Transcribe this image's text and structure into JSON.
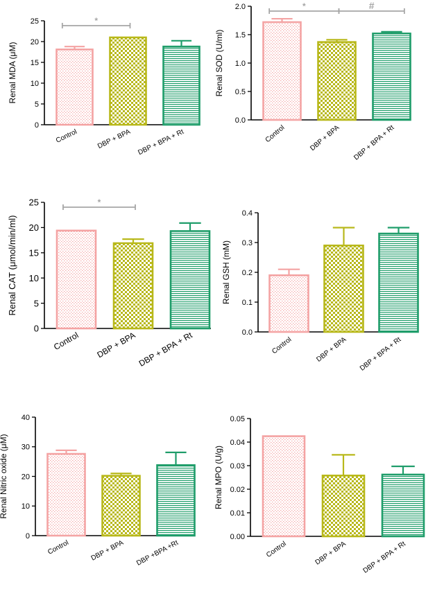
{
  "figure": {
    "category_colors": [
      "#f4a3a3",
      "#b8b81a",
      "#1f9d6a"
    ],
    "sig_color": "#a6a6a6"
  },
  "chart_data": [
    {
      "type": "bar",
      "ylabel": "Renal MDA (μM)",
      "categories": [
        "Control",
        "DBP + BPA",
        "DBP + BPA + Rt"
      ],
      "values": [
        18.1,
        21.0,
        18.8
      ],
      "errors": [
        0.7,
        0.0,
        1.4
      ],
      "ylim": [
        0,
        25
      ],
      "ticks": [
        "0",
        "5",
        "10",
        "15",
        "20",
        "25"
      ],
      "annotations": [
        {
          "text": "*",
          "from": 0,
          "to": 1
        }
      ]
    },
    {
      "type": "bar",
      "ylabel": "Renal SOD (U/ml)",
      "categories": [
        "Control",
        "DBP + BPA",
        "DBP + BPA + Rt"
      ],
      "values": [
        1.72,
        1.37,
        1.52
      ],
      "errors": [
        0.06,
        0.04,
        0.03
      ],
      "ylim": [
        0,
        2.0
      ],
      "ticks": [
        "0.0",
        "0.5",
        "1.0",
        "1.5",
        "2.0"
      ],
      "annotations": [
        {
          "text": "*",
          "from": 0,
          "to": 1
        },
        {
          "text": "#",
          "from": 1,
          "to": 2
        }
      ]
    },
    {
      "type": "bar",
      "ylabel": "Renal CAT (μmol/min/ml)",
      "categories": [
        "Control",
        "DBP + BPA",
        "DBP + BPA + Rt"
      ],
      "values": [
        19.4,
        16.9,
        19.3
      ],
      "errors": [
        0.0,
        0.8,
        1.6
      ],
      "ylim": [
        0,
        25
      ],
      "ticks": [
        "0",
        "5",
        "10",
        "15",
        "20",
        "25"
      ],
      "annotations": [
        {
          "text": "*",
          "from": 0,
          "to": 1
        }
      ]
    },
    {
      "type": "bar",
      "ylabel": "Renal GSH (mM)",
      "categories": [
        "Control",
        "DBP + BPA",
        "DBP + BPA + Rt"
      ],
      "values": [
        0.19,
        0.29,
        0.33
      ],
      "errors": [
        0.02,
        0.06,
        0.02
      ],
      "ylim": [
        0,
        0.4
      ],
      "ticks": [
        "0.0",
        "0.1",
        "0.2",
        "0.3",
        "0.4"
      ],
      "annotations": []
    },
    {
      "type": "bar",
      "ylabel": "Renal Nitric oxide (μM)",
      "categories": [
        "Control",
        "DBP + BPA",
        "DBP +BPA +Rt"
      ],
      "values": [
        27.6,
        20.2,
        23.8
      ],
      "errors": [
        1.2,
        0.8,
        4.3
      ],
      "ylim": [
        0,
        40
      ],
      "ticks": [
        "0",
        "10",
        "20",
        "30",
        "40"
      ],
      "annotations": []
    },
    {
      "type": "bar",
      "ylabel": "Renal MPO (U/g)",
      "categories": [
        "Control",
        "DBP + BPA",
        "DBP + BPA + Rt"
      ],
      "values": [
        0.0425,
        0.0258,
        0.0262
      ],
      "errors": [
        0.0,
        0.0088,
        0.0035
      ],
      "ylim": [
        0,
        0.05
      ],
      "ticks": [
        "0.00",
        "0.01",
        "0.02",
        "0.03",
        "0.04",
        "0.05"
      ],
      "annotations": []
    }
  ]
}
